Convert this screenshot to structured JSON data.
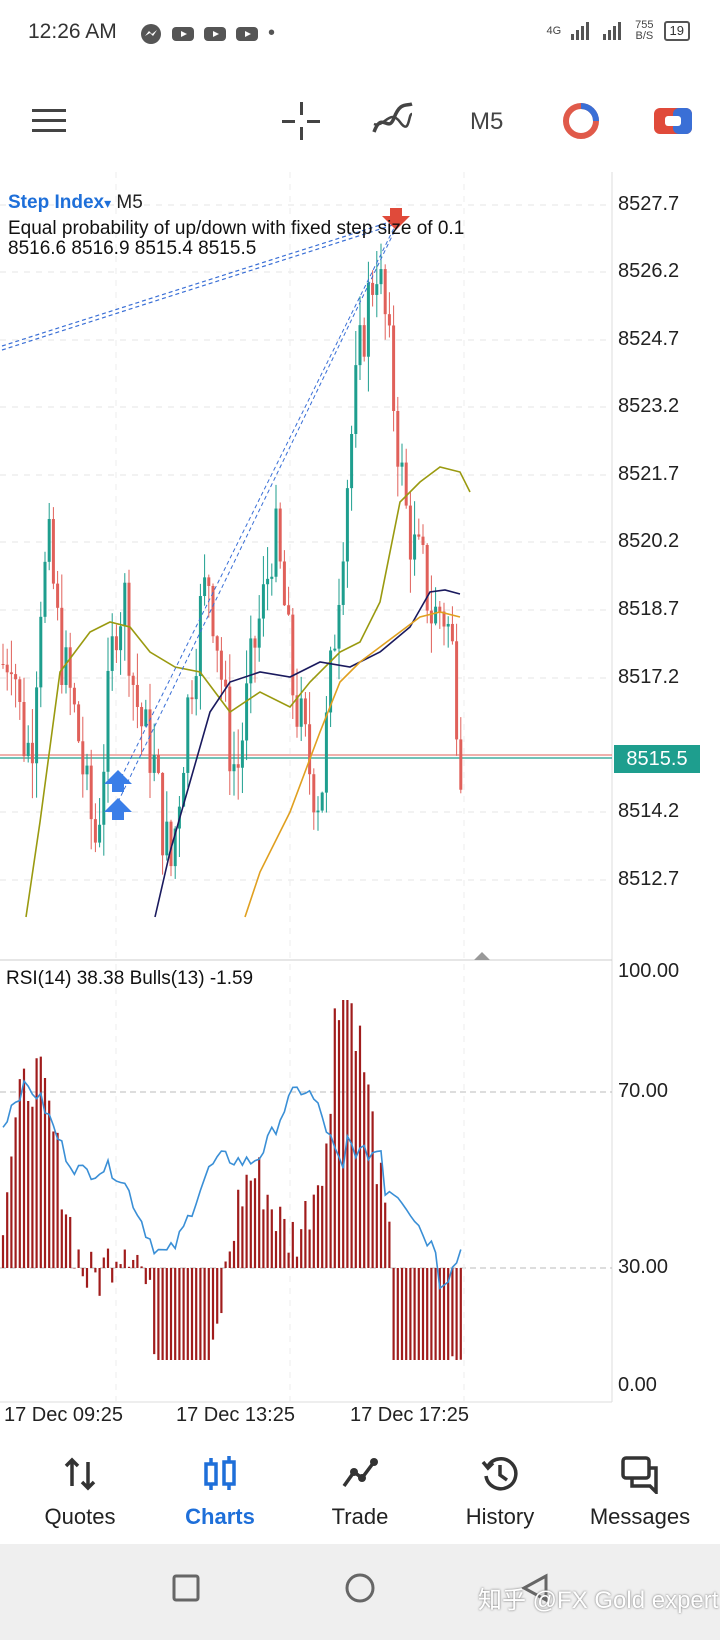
{
  "status_bar": {
    "time": "12:26 AM",
    "network": "4G",
    "speed": "755",
    "speed_unit": "B/S",
    "battery": "19",
    "dot": "•"
  },
  "toolbar": {
    "timeframe": "M5"
  },
  "chart": {
    "symbol": "Step Index",
    "dropdown_glyph": "▾",
    "timeframe": "M5",
    "description": "Equal probability of up/down with fixed step size of 0.1",
    "ohlc": "8516.6 8516.9 8515.4 8515.5",
    "current_price": "8515.5",
    "price_scale": [
      "8527.7",
      "8526.2",
      "8524.7",
      "8523.2",
      "8521.7",
      "8520.2",
      "8518.7",
      "8517.2",
      "8514.2",
      "8512.7"
    ],
    "indicator_label": "RSI(14) 38.38 Bulls(13) -1.59",
    "indicator_scale": [
      "100.00",
      "70.00",
      "30.00",
      "0.00"
    ],
    "time_labels": [
      "17 Dec 09:25",
      "17 Dec 13:25",
      "17 Dec 17:25"
    ],
    "colors": {
      "bull": "#1e9e8e",
      "bear": "#e0605a",
      "rsi": "#3a8fd6",
      "bulls": "#a01c1c",
      "ma_dark": "#1a1a5e",
      "ma_olive": "#9a9a10",
      "ma_orange": "#e0a020"
    }
  },
  "nav": {
    "items": [
      {
        "label": "Quotes",
        "icon": "quotes-icon"
      },
      {
        "label": "Charts",
        "icon": "charts-icon"
      },
      {
        "label": "Trade",
        "icon": "trade-icon"
      },
      {
        "label": "History",
        "icon": "history-icon"
      },
      {
        "label": "Messages",
        "icon": "messages-icon"
      }
    ]
  },
  "watermark": "知乎 @FX Gold expert"
}
